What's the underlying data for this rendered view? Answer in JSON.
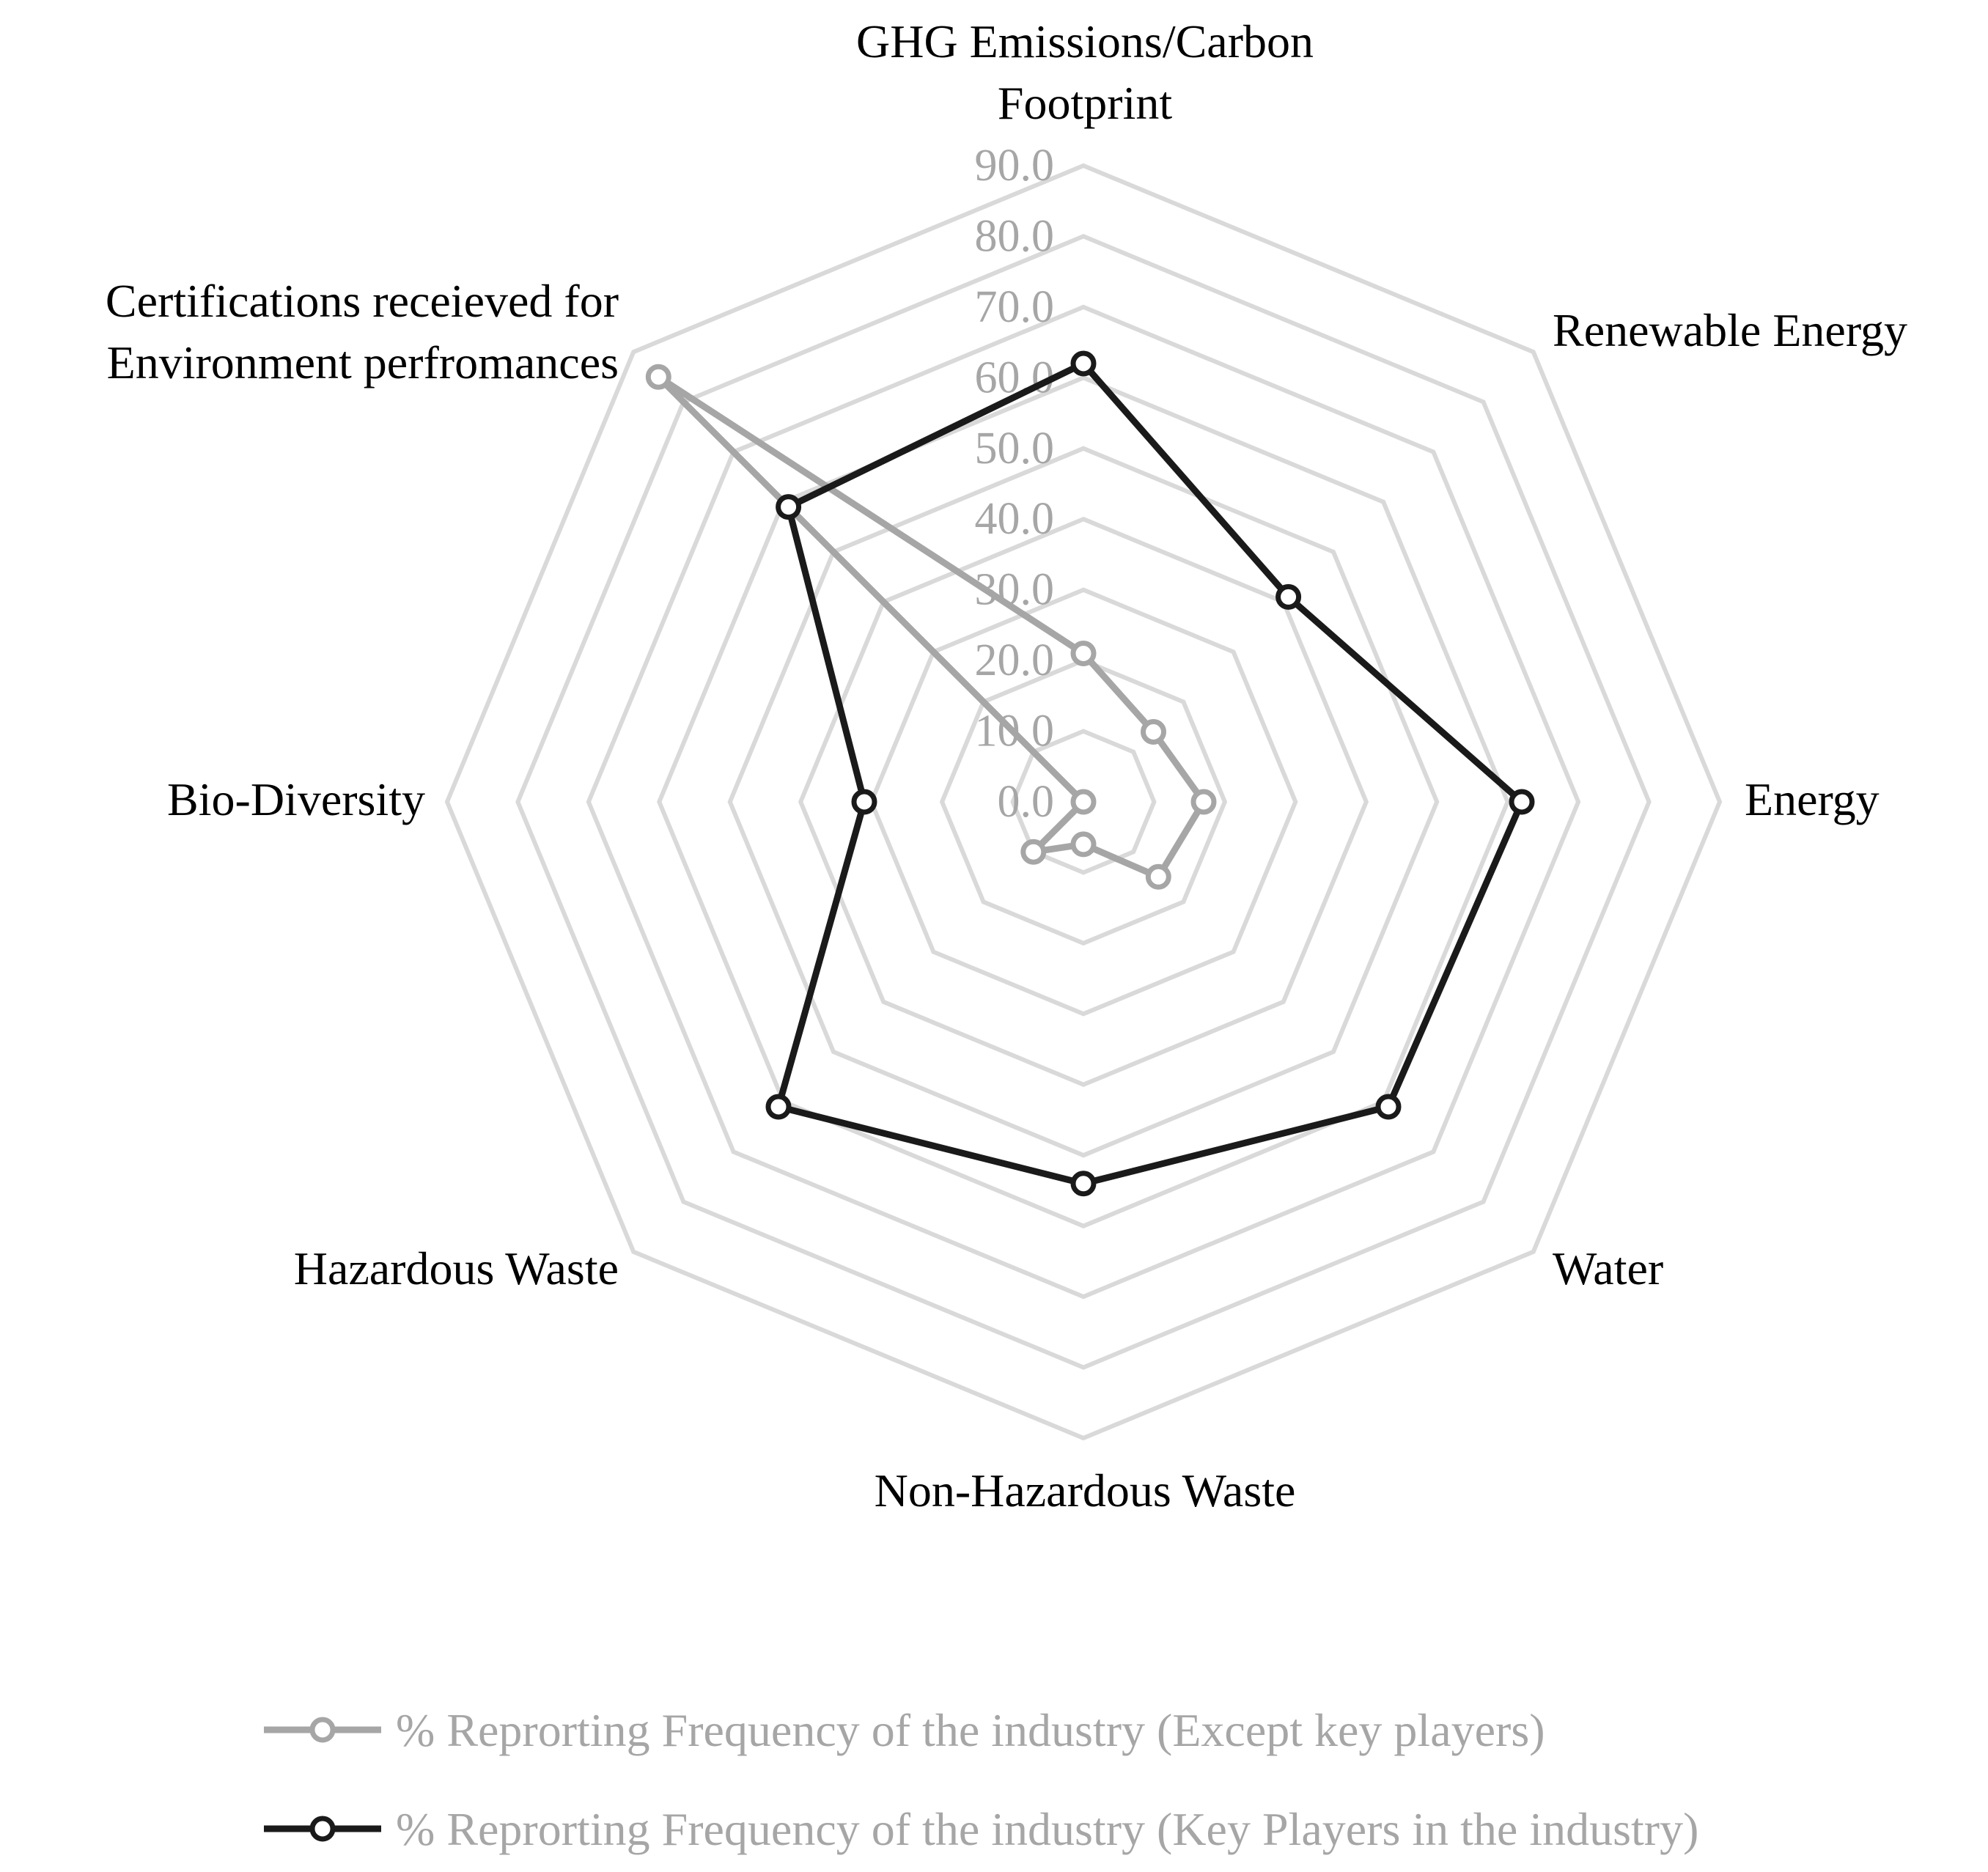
{
  "chart_data": {
    "type": "radar",
    "title": "",
    "axes": [
      {
        "lines": [
          "GHG Emissions/Carbon",
          "Footprint"
        ]
      },
      {
        "lines": [
          "Renewable Energy"
        ]
      },
      {
        "lines": [
          "Energy"
        ]
      },
      {
        "lines": [
          "Water"
        ]
      },
      {
        "lines": [
          "Non-Hazardous Waste"
        ]
      },
      {
        "lines": [
          "Hazardous Waste"
        ]
      },
      {
        "lines": [
          "Bio-Diversity"
        ]
      },
      {
        "lines": [
          "Certifications receieved for",
          "Environment perfromances"
        ]
      }
    ],
    "categories": [
      "GHG Emissions/Carbon Footprint",
      "Renewable Energy",
      "Energy",
      "Water",
      "Non-Hazardous Waste",
      "Hazardous Waste",
      "Bio-Diversity",
      "Certifications receieved for Environment perfromances"
    ],
    "ticks": [
      "0.0",
      "10.0",
      "20.0",
      "30.0",
      "40.0",
      "50.0",
      "60.0",
      "70.0",
      "80.0",
      "90.0"
    ],
    "rlim": [
      0,
      90
    ],
    "grid": true,
    "legend_position": "bottom",
    "series": [
      {
        "name": "% Reprorting Frequency of the industry (Except key players)",
        "color": "#a6a6a6",
        "values": [
          21.0,
          14.0,
          17.0,
          15.0,
          6.0,
          10.0,
          0.0,
          85.0
        ]
      },
      {
        "name": "% Reprorting Frequency of the industry (Key Players in the industry)",
        "color": "#1a1a1a",
        "values": [
          62.0,
          41.0,
          62.0,
          61.0,
          54.0,
          61.0,
          31.0,
          59.0
        ]
      }
    ]
  }
}
